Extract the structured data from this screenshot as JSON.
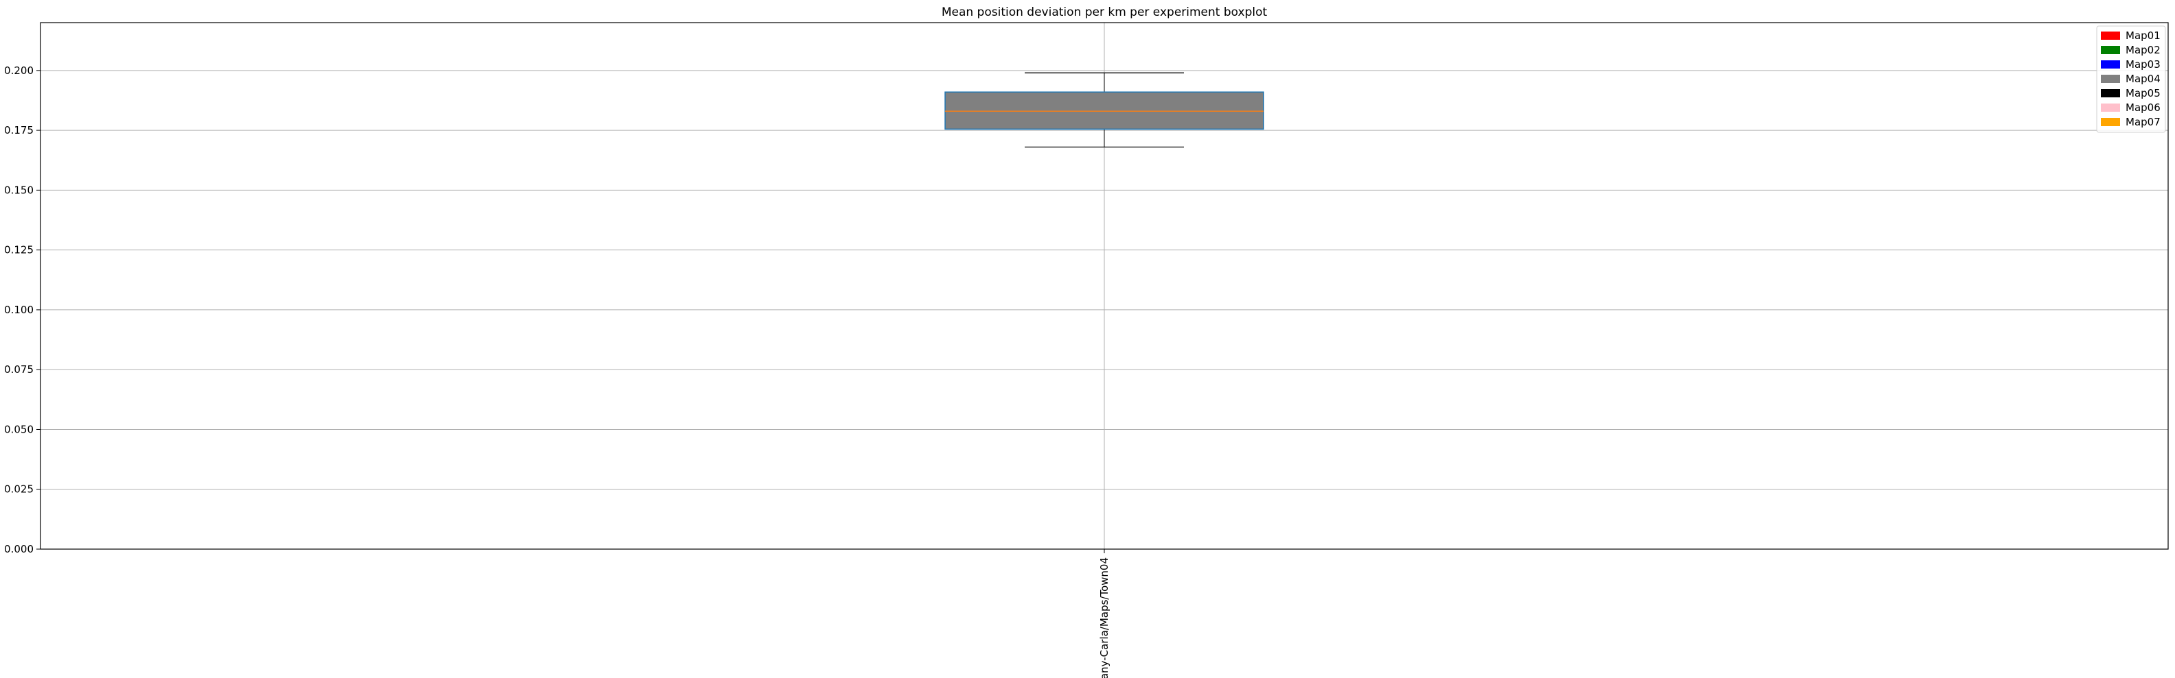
{
  "chart_data": {
    "type": "boxplot",
    "title": "Mean position deviation per km per experiment boxplot",
    "xlabel": "",
    "ylabel": "",
    "ylim": [
      0.0,
      0.22
    ],
    "yticks": [
      0.0,
      0.025,
      0.05,
      0.075,
      0.1,
      0.125,
      0.15,
      0.175,
      0.2
    ],
    "ytick_labels": [
      "0.000",
      "0.025",
      "0.050",
      "0.075",
      "0.100",
      "0.125",
      "0.150",
      "0.175",
      "0.200"
    ],
    "grid": true,
    "legend_position": "top-right",
    "categories": [
      "any-Carla/Maps/Town04"
    ],
    "boxes": [
      {
        "category": "any-Carla/Maps/Town04",
        "whisker_low": 0.168,
        "q1": 0.1755,
        "median": 0.183,
        "q3": 0.191,
        "whisker_high": 0.199,
        "fill": "#808080",
        "edge": "#1f77b4",
        "median_color": "#ff7f0e"
      }
    ],
    "legend": [
      {
        "label": "Map01",
        "color": "#ff0000"
      },
      {
        "label": "Map02",
        "color": "#008000"
      },
      {
        "label": "Map03",
        "color": "#0000ff"
      },
      {
        "label": "Map04",
        "color": "#808080"
      },
      {
        "label": "Map05",
        "color": "#000000"
      },
      {
        "label": "Map06",
        "color": "#ffc0cb"
      },
      {
        "label": "Map07",
        "color": "#ffa500"
      }
    ]
  }
}
